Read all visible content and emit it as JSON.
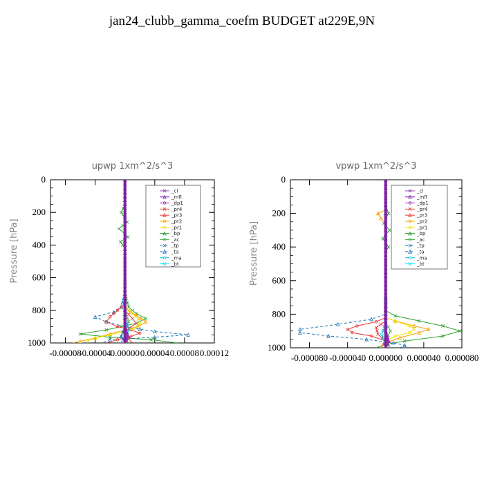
{
  "title": "jan24_clubb_gamma_coefm  BUDGET at229E,9N",
  "colors": {
    "_cl": "#8e44ad",
    "_mfl": "#7b1fa2",
    "_dp1": "#9c27b0",
    "_pr4": "#e53935",
    "_pr3": "#e53935",
    "_pr2": "#f4a300",
    "_pr1": "#f0e000",
    "_bp": "#2ca02c",
    "_ac": "#4caf50",
    "_tp": "#1f77b4",
    "_ta": "#1565c0",
    "_ma": "#00bcd4",
    "_bt": "#00e5ff"
  },
  "chart_data": [
    {
      "type": "line",
      "title": "upwp   1xm^2/s^3",
      "ylabel": "Pressure [hPa]",
      "xlim": [
        -0.0001,
        0.00012
      ],
      "ylim": [
        1000,
        0
      ],
      "xticks": [
        -8e-05,
        -4e-05,
        0.0,
        4e-05,
        8e-05,
        0.00012
      ],
      "xtick_labels": [
        "-0.00008",
        "-0.00004",
        "0.00000",
        "0.00004",
        "0.00008",
        "0.00012"
      ],
      "yticks": [
        0,
        200,
        400,
        600,
        800,
        1000
      ],
      "ytick_labels": [
        "0",
        "200",
        "400",
        "600",
        "800",
        "1000"
      ],
      "legend": [
        "_cl",
        "_mfl",
        "_dp1",
        "_pr4",
        "_pr3",
        "_pr2",
        "_pr1",
        "_bp",
        "_ac",
        "_tp",
        "_ta",
        "_ma",
        "_bt"
      ],
      "legend_position": "top-right",
      "series": [
        {
          "name": "_bp",
          "points": [
            [
              0,
              0
            ],
            [
              0,
              150
            ],
            [
              -5e-06,
              200
            ],
            [
              3e-06,
              260
            ],
            [
              -8e-06,
              300
            ],
            [
              4e-06,
              350
            ],
            [
              -6e-06,
              380
            ],
            [
              0,
              420
            ],
            [
              0,
              700
            ],
            [
              5e-06,
              780
            ],
            [
              1.5e-05,
              820
            ],
            [
              2.8e-05,
              850
            ],
            [
              1.5e-05,
              880
            ],
            [
              -5e-06,
              900
            ],
            [
              -2.5e-05,
              920
            ],
            [
              -6e-05,
              945
            ],
            [
              -2e-05,
              965
            ],
            [
              3.5e-05,
              980
            ],
            [
              7e-05,
              1000
            ]
          ]
        },
        {
          "name": "_tp",
          "points": [
            [
              0,
              0
            ],
            [
              0,
              700
            ],
            [
              -5e-06,
              780
            ],
            [
              -1.5e-05,
              810
            ],
            [
              -4e-05,
              840
            ],
            [
              -2.5e-05,
              870
            ],
            [
              0,
              900
            ],
            [
              2e-05,
              915
            ],
            [
              4e-05,
              930
            ],
            [
              8.5e-05,
              950
            ],
            [
              4e-05,
              965
            ],
            [
              -2e-05,
              980
            ],
            [
              -3e-05,
              1000
            ]
          ]
        },
        {
          "name": "_pr4",
          "points": [
            [
              0,
              0
            ],
            [
              0,
              760
            ],
            [
              -1e-05,
              800
            ],
            [
              -2e-05,
              840
            ],
            [
              -2.5e-05,
              870
            ],
            [
              -1e-05,
              900
            ],
            [
              8e-06,
              920
            ],
            [
              2e-05,
              940
            ],
            [
              8e-06,
              960
            ],
            [
              -1e-05,
              980
            ],
            [
              -2.5e-05,
              1000
            ]
          ]
        },
        {
          "name": "_pr3",
          "points": [
            [
              0,
              0
            ],
            [
              0,
              800
            ],
            [
              1e-05,
              850
            ],
            [
              1.5e-05,
              880
            ],
            [
              5e-06,
              910
            ],
            [
              0,
              950
            ],
            [
              1e-05,
              1000
            ]
          ]
        },
        {
          "name": "_pr2",
          "points": [
            [
              0,
              0
            ],
            [
              0,
              790
            ],
            [
              1.5e-05,
              830
            ],
            [
              2.8e-05,
              870
            ],
            [
              1.8e-05,
              900
            ],
            [
              0,
              920
            ],
            [
              -2e-05,
              945
            ],
            [
              -4e-05,
              970
            ],
            [
              -6e-05,
              990
            ],
            [
              -7e-05,
              1000
            ]
          ]
        },
        {
          "name": "_pr1",
          "points": [
            [
              0,
              0
            ],
            [
              0,
              780
            ],
            [
              1e-05,
              820
            ],
            [
              1.8e-05,
              850
            ],
            [
              2e-05,
              880
            ],
            [
              1.2e-05,
              910
            ],
            [
              0,
              930
            ],
            [
              -2e-05,
              950
            ],
            [
              -4e-05,
              970
            ],
            [
              -5e-05,
              985
            ],
            [
              -5e-05,
              1000
            ]
          ]
        },
        {
          "name": "_ac",
          "points": [
            [
              0,
              0
            ],
            [
              0,
              800
            ],
            [
              5e-06,
              870
            ],
            [
              0,
              920
            ],
            [
              -5e-06,
              960
            ],
            [
              5e-06,
              1000
            ]
          ]
        },
        {
          "name": "_ta",
          "points": [
            [
              0,
              0
            ],
            [
              0,
              900
            ],
            [
              -5e-06,
              960
            ],
            [
              0,
              1000
            ]
          ]
        },
        {
          "name": "_ma",
          "points": [
            [
              0,
              0
            ],
            [
              0,
              850
            ],
            [
              5e-06,
              920
            ],
            [
              0,
              1000
            ]
          ]
        },
        {
          "name": "_bt",
          "points": [
            [
              0,
              0
            ],
            [
              0,
              1000
            ]
          ]
        },
        {
          "name": "_dp1",
          "points": [
            [
              0,
              0
            ],
            [
              0,
              900
            ],
            [
              4e-06,
              960
            ],
            [
              0,
              1000
            ]
          ]
        },
        {
          "name": "_cl",
          "points": [
            [
              0,
              0
            ],
            [
              0,
              1000
            ]
          ]
        },
        {
          "name": "_mfl",
          "points": [
            [
              0,
              0
            ],
            [
              0,
              1000
            ]
          ]
        }
      ]
    },
    {
      "type": "line",
      "title": "vpwp   1xm^2/s^3",
      "ylabel": "Pressure [hPa]",
      "xlim": [
        -0.0001,
        8e-05
      ],
      "ylim": [
        1000,
        0
      ],
      "xticks": [
        -8e-05,
        -4e-05,
        0.0,
        4e-05,
        8e-05
      ],
      "xtick_labels": [
        "-0.000080",
        "-0.000040",
        "0.000000",
        "0.000040",
        "0.000080"
      ],
      "yticks": [
        0,
        200,
        400,
        600,
        800,
        1000
      ],
      "ytick_labels": [
        "0",
        "200",
        "400",
        "600",
        "800",
        "1000"
      ],
      "legend": [
        "_cl",
        "_mfl",
        "_dp1",
        "_pr4",
        "_pr3",
        "_pr2",
        "_pr1",
        "_bp",
        "_ac",
        "_tp",
        "_ta",
        "_ma",
        "_bt"
      ],
      "legend_position": "top-right",
      "series": [
        {
          "name": "_bp",
          "points": [
            [
              0,
              0
            ],
            [
              0,
              150
            ],
            [
              3e-06,
              200
            ],
            [
              -2e-06,
              260
            ],
            [
              4e-06,
              300
            ],
            [
              -3e-06,
              350
            ],
            [
              3e-06,
              400
            ],
            [
              0,
              430
            ],
            [
              0,
              780
            ],
            [
              1e-05,
              810
            ],
            [
              3.5e-05,
              840
            ],
            [
              6e-05,
              870
            ],
            [
              7.8e-05,
              900
            ],
            [
              6e-05,
              930
            ],
            [
              2e-05,
              960
            ],
            [
              0,
              980
            ],
            [
              -1e-05,
              1000
            ]
          ]
        },
        {
          "name": "_tp",
          "points": [
            [
              0,
              0
            ],
            [
              0,
              800
            ],
            [
              -1.5e-05,
              830
            ],
            [
              -5e-05,
              860
            ],
            [
              -9e-05,
              890
            ],
            [
              -9e-05,
              910
            ],
            [
              -6e-05,
              930
            ],
            [
              -2e-05,
              950
            ],
            [
              8e-06,
              970
            ],
            [
              2e-05,
              985
            ],
            [
              1.5e-05,
              1000
            ]
          ]
        },
        {
          "name": "_pr4",
          "points": [
            [
              0,
              0
            ],
            [
              0,
              820
            ],
            [
              -1e-05,
              845
            ],
            [
              -3e-05,
              870
            ],
            [
              -4e-05,
              890
            ],
            [
              -3.5e-05,
              910
            ],
            [
              -1.5e-05,
              930
            ],
            [
              0,
              960
            ],
            [
              -5e-06,
              1000
            ]
          ]
        },
        {
          "name": "_pr3",
          "points": [
            [
              0,
              0
            ],
            [
              0,
              840
            ],
            [
              -1e-05,
              880
            ],
            [
              -8e-06,
              920
            ],
            [
              0,
              960
            ],
            [
              0,
              1000
            ]
          ]
        },
        {
          "name": "_pr2",
          "points": [
            [
              0,
              0
            ],
            [
              0,
              180
            ],
            [
              -8e-06,
              200
            ],
            [
              -5e-06,
              230
            ],
            [
              0,
              260
            ],
            [
              0,
              820
            ],
            [
              1e-05,
              840
            ],
            [
              3e-05,
              870
            ],
            [
              4.5e-05,
              890
            ],
            [
              3.5e-05,
              910
            ],
            [
              1.5e-05,
              940
            ],
            [
              0,
              970
            ],
            [
              -5e-06,
              1000
            ]
          ]
        },
        {
          "name": "_pr1",
          "points": [
            [
              0,
              0
            ],
            [
              0,
              820
            ],
            [
              1e-05,
              840
            ],
            [
              2.5e-05,
              870
            ],
            [
              3e-05,
              890
            ],
            [
              2.5e-05,
              910
            ],
            [
              1e-05,
              930
            ],
            [
              0,
              960
            ],
            [
              0,
              1000
            ]
          ]
        },
        {
          "name": "_ac",
          "points": [
            [
              0,
              0
            ],
            [
              0,
              850
            ],
            [
              5e-06,
              900
            ],
            [
              0,
              950
            ],
            [
              5e-06,
              1000
            ]
          ]
        },
        {
          "name": "_ta",
          "points": [
            [
              0,
              0
            ],
            [
              0,
              900
            ],
            [
              3e-06,
              960
            ],
            [
              0,
              1000
            ]
          ]
        },
        {
          "name": "_ma",
          "points": [
            [
              0,
              0
            ],
            [
              0,
              850
            ],
            [
              -4e-06,
              920
            ],
            [
              0,
              1000
            ]
          ]
        },
        {
          "name": "_bt",
          "points": [
            [
              0,
              0
            ],
            [
              0,
              1000
            ]
          ]
        },
        {
          "name": "_dp1",
          "points": [
            [
              0,
              0
            ],
            [
              0,
              900
            ],
            [
              3e-06,
              960
            ],
            [
              0,
              1000
            ]
          ]
        },
        {
          "name": "_cl",
          "points": [
            [
              0,
              0
            ],
            [
              0,
              1000
            ]
          ]
        },
        {
          "name": "_mfl",
          "points": [
            [
              0,
              0
            ],
            [
              0,
              1000
            ]
          ]
        }
      ]
    }
  ]
}
